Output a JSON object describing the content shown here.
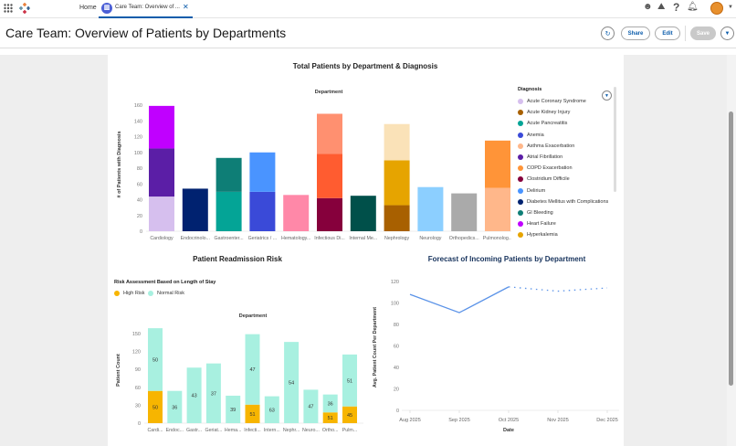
{
  "topbar": {
    "home_label": "Home",
    "tab_label": "Care Team: Overview of ...",
    "icons": [
      "app-launcher-icon",
      "logo-icon",
      "einstein-icon",
      "trailhead-icon",
      "help-icon",
      "bell-icon",
      "avatar"
    ]
  },
  "header": {
    "title": "Care Team: Overview of Patients by Departments",
    "share_label": "Share",
    "edit_label": "Edit",
    "save_label": "Save"
  },
  "colors": {
    "accent": "#0b5cab",
    "line": "#5b93e8",
    "high_risk": "#f7b500",
    "normal_risk": "#a8f0e0"
  },
  "chart_data": [
    {
      "type": "bar",
      "stacked": true,
      "title": "Total Patients by Department & Diagnosis",
      "xlabel": "Department",
      "ylabel": "# of Patients with Diagnosis",
      "ylim": [
        0,
        160
      ],
      "yticks": [
        0,
        20,
        40,
        60,
        80,
        100,
        120,
        140,
        160
      ],
      "categories": [
        "Cardiology",
        "Endocrinolo...",
        "Gastroenter...",
        "Geriatrics / ...",
        "Hematology...",
        "Infectious Di...",
        "Internal Me...",
        "Nephrology",
        "Neurology",
        "Orthopedics...",
        "Pulmonolog..."
      ],
      "stacks": [
        [
          {
            "v": 44,
            "c": "#d6bfee"
          },
          {
            "v": 61,
            "c": "#5b1ea6"
          },
          {
            "v": 54,
            "c": "#c000ff"
          }
        ],
        [
          {
            "v": 54,
            "c": "#002270"
          }
        ],
        [
          {
            "v": 50,
            "c": "#04a496"
          },
          {
            "v": 43,
            "c": "#0e7e76"
          }
        ],
        [
          {
            "v": 50,
            "c": "#3a4ad8"
          },
          {
            "v": 50,
            "c": "#4a94ff"
          }
        ],
        [
          {
            "v": 46,
            "c": "#ff88a8"
          }
        ],
        [
          {
            "v": 42,
            "c": "#86003c"
          },
          {
            "v": 56,
            "c": "#ff5c30"
          },
          {
            "v": 51,
            "c": "#ff9070"
          }
        ],
        [
          {
            "v": 45,
            "c": "#00504a"
          }
        ],
        [
          {
            "v": 33,
            "c": "#a86000"
          },
          {
            "v": 57,
            "c": "#e6a400"
          },
          {
            "v": 46,
            "c": "#fae2b8"
          }
        ],
        [
          {
            "v": 56,
            "c": "#8ccfff"
          }
        ],
        [
          {
            "v": 48,
            "c": "#aaaaaa"
          }
        ],
        [
          {
            "v": 55,
            "c": "#ffb78a"
          },
          {
            "v": 60,
            "c": "#ff9438"
          }
        ]
      ],
      "legend_title": "Diagnosis",
      "legend_position": "right",
      "legend": [
        {
          "name": "Acute Coronary Syndrome",
          "color": "#d6bfee"
        },
        {
          "name": "Acute Kidney Injury",
          "color": "#a86000"
        },
        {
          "name": "Acute Pancreatitis",
          "color": "#04a496"
        },
        {
          "name": "Anemia",
          "color": "#3a4ad8"
        },
        {
          "name": "Asthma Exacerbation",
          "color": "#ffb78a"
        },
        {
          "name": "Atrial Fibrillation",
          "color": "#5b1ea6"
        },
        {
          "name": "COPD Exacerbation",
          "color": "#ff9438"
        },
        {
          "name": "Clostridium Difficile",
          "color": "#86003c"
        },
        {
          "name": "Delirium",
          "color": "#4a94ff"
        },
        {
          "name": "Diabetes Mellitus with Complications",
          "color": "#002270"
        },
        {
          "name": "GI Bleeding",
          "color": "#0e7e76"
        },
        {
          "name": "Heart Failure",
          "color": "#c000ff"
        },
        {
          "name": "Hyperkalemia",
          "color": "#e6a400"
        }
      ]
    },
    {
      "type": "bar",
      "stacked": true,
      "title": "Patient Readmission Risk",
      "legend_title": "Risk Assessment Based on Length of Stay",
      "legend_position": "top-left",
      "xlabel": "Department",
      "ylabel": "Patient Count",
      "ylim": [
        0,
        160
      ],
      "yticks": [
        0,
        30,
        60,
        90,
        120,
        150
      ],
      "categories": [
        "Cardi...",
        "Endoc...",
        "Gastr...",
        "Geriat...",
        "Hema...",
        "Infecti...",
        "Intern...",
        "Nephr...",
        "Neuro...",
        "Ortho...",
        "Pulm..."
      ],
      "series": [
        {
          "name": "High Risk",
          "values": [
            54,
            0,
            0,
            0,
            0,
            31,
            0,
            0,
            0,
            18,
            28
          ],
          "labels": [
            "50",
            "",
            "",
            "",
            "",
            "51",
            "",
            "",
            "",
            "51",
            "45"
          ]
        },
        {
          "name": "Normal Risk",
          "values": [
            105,
            54,
            93,
            100,
            46,
            118,
            45,
            136,
            56,
            30,
            87
          ],
          "labels": [
            "50",
            "36",
            "43",
            "37",
            "39",
            "47",
            "63",
            "54",
            "47",
            "36",
            "51"
          ]
        }
      ]
    },
    {
      "type": "line",
      "title": "Forecast of Incoming Patients by Department",
      "xlabel": "Date",
      "ylabel": "Avg. Patient Count Per Department",
      "ylim": [
        0,
        120
      ],
      "yticks": [
        0,
        20,
        40,
        60,
        80,
        100,
        120
      ],
      "x": [
        "Aug 2025",
        "Sep 2025",
        "Oct 2025",
        "Nov 2025",
        "Dec 2025"
      ],
      "actual": [
        108,
        91,
        115,
        null,
        null
      ],
      "forecast": [
        null,
        null,
        115,
        111,
        114
      ]
    }
  ]
}
